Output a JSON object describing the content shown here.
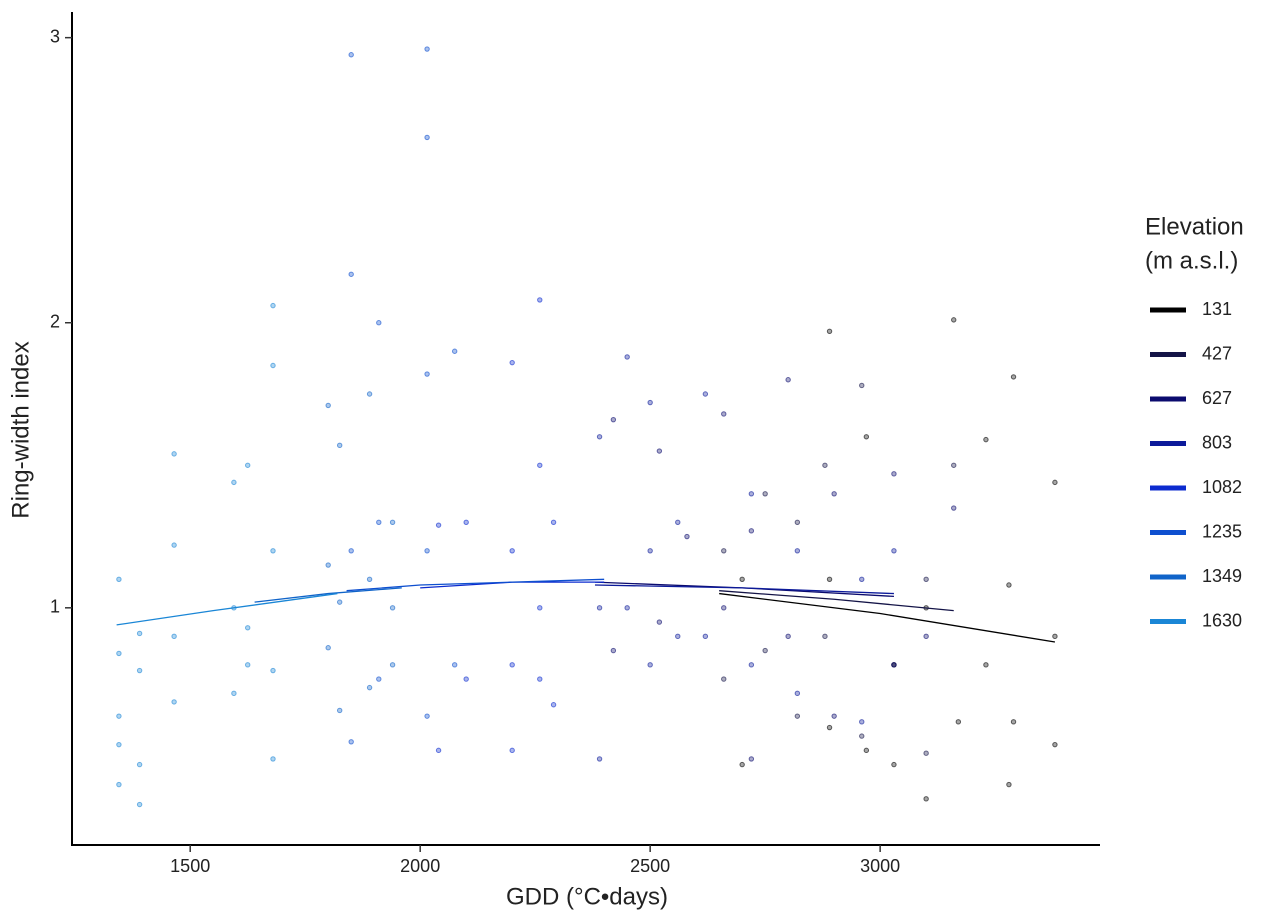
{
  "chart_data": {
    "type": "scatter",
    "x_label": "GDD (°C•days)",
    "y_label": "Ring-width index",
    "legend_title": [
      "Elevation",
      "(m a.s.l.)"
    ],
    "legend_position": "right",
    "xlim": [
      1243,
      3478
    ],
    "ylim": [
      0.168,
      3.09
    ],
    "xticks": [
      1500,
      2000,
      2500,
      3000
    ],
    "yticks": [
      1,
      2,
      3
    ],
    "grid": false,
    "series": [
      {
        "name": "131",
        "color": "#000000",
        "x": [
          2700,
          2700,
          2890,
          2890,
          2890,
          2970,
          2970,
          3030,
          3030,
          3100,
          3100,
          3160,
          3170,
          3230,
          3230,
          3280,
          3280,
          3290,
          3290,
          3380,
          3380,
          3380
        ],
        "values": [
          1.1,
          0.45,
          1.97,
          1.1,
          0.58,
          1.6,
          0.5,
          0.8,
          0.45,
          1.0,
          0.33,
          2.01,
          0.6,
          1.59,
          0.8,
          1.08,
          0.38,
          1.81,
          0.6,
          1.44,
          0.9,
          0.52
        ],
        "trend_x": [
          2650,
          3000,
          3380
        ],
        "trend_y": [
          1.05,
          0.98,
          0.88
        ]
      },
      {
        "name": "427",
        "color": "#141447",
        "x": [
          2660,
          2660,
          2750,
          2750,
          2820,
          2820,
          2880,
          2880,
          2960,
          2960,
          3030,
          3100,
          3100,
          3160
        ],
        "values": [
          1.2,
          0.75,
          1.4,
          0.85,
          1.3,
          0.62,
          1.5,
          0.9,
          1.78,
          0.55,
          0.8,
          1.1,
          0.49,
          1.5
        ],
        "trend_x": [
          2650,
          2900,
          3160
        ],
        "trend_y": [
          1.06,
          1.03,
          0.99
        ]
      },
      {
        "name": "627",
        "color": "#0b0b6e",
        "x": [
          2420,
          2420,
          2520,
          2520,
          2580,
          2660,
          2660,
          2720,
          2720,
          2800,
          2800,
          2900,
          2900,
          3030,
          3030,
          3100,
          3160
        ],
        "values": [
          1.66,
          0.85,
          1.55,
          0.95,
          1.25,
          1.68,
          1.0,
          1.27,
          0.47,
          1.8,
          0.9,
          1.4,
          0.62,
          1.47,
          0.8,
          0.9,
          1.35
        ],
        "trend_x": [
          2380,
          2700,
          3030
        ],
        "trend_y": [
          1.09,
          1.07,
          1.04
        ]
      },
      {
        "name": "803",
        "color": "#0c1a9a",
        "x": [
          2390,
          2390,
          2390,
          2450,
          2450,
          2500,
          2500,
          2500,
          2560,
          2560,
          2620,
          2620,
          2720,
          2720,
          2820,
          2820,
          2960,
          2960,
          3030
        ],
        "values": [
          1.6,
          1.0,
          0.47,
          1.88,
          1.0,
          1.72,
          1.2,
          0.8,
          1.3,
          0.9,
          1.75,
          0.9,
          1.4,
          0.8,
          1.2,
          0.7,
          1.1,
          0.6,
          1.2
        ],
        "trend_x": [
          2380,
          2700,
          3030
        ],
        "trend_y": [
          1.08,
          1.07,
          1.05
        ]
      },
      {
        "name": "1082",
        "color": "#0c2bcf",
        "x": [
          2040,
          2040,
          2100,
          2100,
          2200,
          2200,
          2200,
          2200,
          2260,
          2260,
          2260,
          2260,
          2290,
          2290
        ],
        "values": [
          1.29,
          0.5,
          1.3,
          0.75,
          1.86,
          1.2,
          0.8,
          0.5,
          2.08,
          1.5,
          1.0,
          0.75,
          1.3,
          0.66
        ],
        "trend_x": [
          2000,
          2200,
          2400
        ],
        "trend_y": [
          1.07,
          1.09,
          1.09
        ]
      },
      {
        "name": "1235",
        "color": "#0e4fcf",
        "x": [
          1850,
          1850,
          1850,
          1850,
          1910,
          1910,
          1910,
          2015,
          2015,
          2015,
          2015,
          2015,
          2075,
          2075
        ],
        "values": [
          2.94,
          2.17,
          1.2,
          0.53,
          2.0,
          1.3,
          0.75,
          2.96,
          2.65,
          1.82,
          1.2,
          0.62,
          1.9,
          0.8
        ],
        "trend_x": [
          1840,
          2000,
          2400
        ],
        "trend_y": [
          1.06,
          1.08,
          1.1
        ]
      },
      {
        "name": "1349",
        "color": "#1064c9",
        "x": [
          1800,
          1800,
          1800,
          1825,
          1825,
          1825,
          1890,
          1890,
          1890,
          1940,
          1940,
          1940
        ],
        "values": [
          1.71,
          1.15,
          0.86,
          1.57,
          1.02,
          0.64,
          1.75,
          1.1,
          0.72,
          1.3,
          1.0,
          0.8
        ],
        "trend_x": [
          1640,
          1800,
          1960
        ],
        "trend_y": [
          1.02,
          1.05,
          1.07
        ]
      },
      {
        "name": "1630",
        "color": "#1a86d6",
        "x": [
          1345,
          1345,
          1345,
          1345,
          1345,
          1390,
          1390,
          1390,
          1390,
          1465,
          1465,
          1465,
          1465,
          1595,
          1595,
          1595,
          1625,
          1625,
          1625,
          1680,
          1680,
          1680,
          1680,
          1680
        ],
        "values": [
          1.1,
          0.84,
          0.62,
          0.52,
          0.38,
          0.91,
          0.78,
          0.45,
          0.31,
          1.54,
          1.22,
          0.9,
          0.67,
          1.44,
          1.0,
          0.7,
          1.5,
          0.93,
          0.8,
          2.06,
          1.85,
          1.2,
          0.78,
          0.47
        ],
        "trend_x": [
          1340,
          1550,
          1820
        ],
        "trend_y": [
          0.94,
          0.99,
          1.05
        ]
      }
    ]
  }
}
